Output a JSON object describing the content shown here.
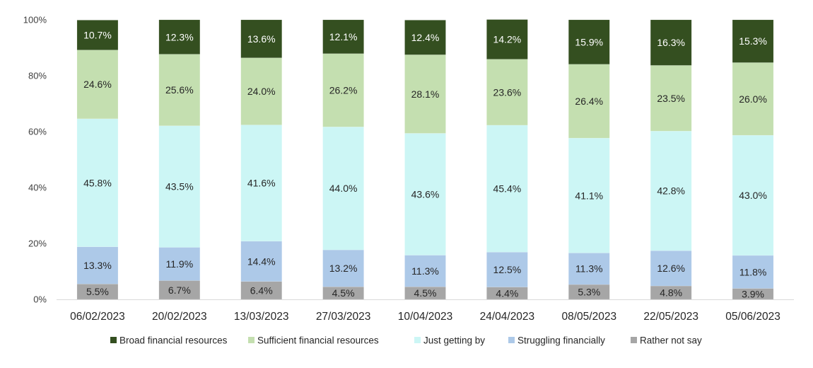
{
  "chart_data": {
    "type": "bar",
    "stacked": true,
    "percent_stacked": true,
    "title": "",
    "xlabel": "",
    "ylabel": "",
    "ylim": [
      0,
      100
    ],
    "yticks": [
      "0%",
      "20%",
      "40%",
      "60%",
      "80%",
      "100%"
    ],
    "ytick_values": [
      0,
      20,
      40,
      60,
      80,
      100
    ],
    "grid": false,
    "legend_position": "bottom",
    "categories": [
      "06/02/2023",
      "20/02/2023",
      "13/03/2023",
      "27/03/2023",
      "10/04/2023",
      "24/04/2023",
      "08/05/2023",
      "22/05/2023",
      "05/06/2023"
    ],
    "series": [
      {
        "name": "Rather not say",
        "color": "#a6a6a6",
        "label_color": "#262626",
        "values": [
          5.5,
          6.7,
          6.4,
          4.5,
          4.5,
          4.4,
          5.3,
          4.8,
          3.9
        ]
      },
      {
        "name": "Struggling financially",
        "color": "#adc9e8",
        "label_color": "#262626",
        "values": [
          13.3,
          11.9,
          14.4,
          13.2,
          11.3,
          12.5,
          11.3,
          12.6,
          11.8
        ]
      },
      {
        "name": "Just getting by",
        "color": "#ccf6f5",
        "label_color": "#262626",
        "values": [
          45.8,
          43.5,
          41.6,
          44.0,
          43.6,
          45.4,
          41.1,
          42.8,
          43.0
        ]
      },
      {
        "name": "Sufficient financial resources",
        "color": "#c4dfb0",
        "label_color": "#262626",
        "values": [
          24.6,
          25.6,
          24.0,
          26.2,
          28.1,
          23.6,
          26.4,
          23.5,
          26.0
        ]
      },
      {
        "name": "Broad financial resources",
        "color": "#344f20",
        "label_color": "#ffffff",
        "values": [
          10.7,
          12.3,
          13.6,
          12.1,
          12.4,
          14.2,
          15.9,
          16.3,
          15.3
        ]
      }
    ],
    "legend_order": [
      "Broad financial resources",
      "Sufficient financial resources",
      "Just getting by",
      "Struggling financially",
      "Rather not say"
    ],
    "value_suffix": "%"
  }
}
